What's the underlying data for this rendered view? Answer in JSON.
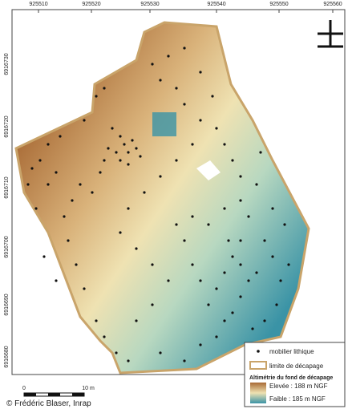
{
  "map": {
    "x_labels": [
      "925510",
      "925520",
      "925530",
      "925540",
      "925550",
      "925560"
    ],
    "y_labels": [
      "6916730",
      "6916720",
      "6916710",
      "6916700",
      "6916690",
      "6916680"
    ],
    "legend": {
      "points": "mobilier lithique",
      "boundary": "limite de décapage",
      "title": "Altimétrie du fond de décapage",
      "high": "Elevée : 188 m NGF",
      "low": "Faible : 185 m NGF"
    },
    "scale": {
      "start": "0",
      "end": "10 m"
    },
    "credit": "© Frédéric Blaser, Inrap"
  }
}
